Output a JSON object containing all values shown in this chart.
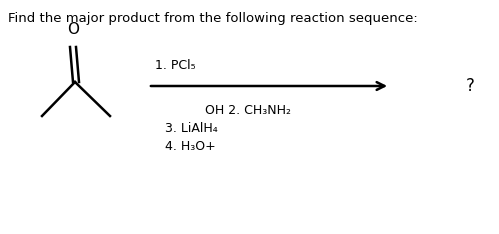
{
  "title": "Find the major product from the following reaction sequence:",
  "title_fontsize": 9.5,
  "bg_color": "#ffffff",
  "text_color": "#000000",
  "step1_label": "1. PCl₅",
  "step2_label": "OH 2. CH₃NH₂",
  "step3_label": "3. LiAlH₄",
  "step4_label": "4. H₃O+",
  "question_mark": "?",
  "font_family": "DejaVu Sans",
  "structure_font": 10,
  "label_fontsize": 9.0
}
